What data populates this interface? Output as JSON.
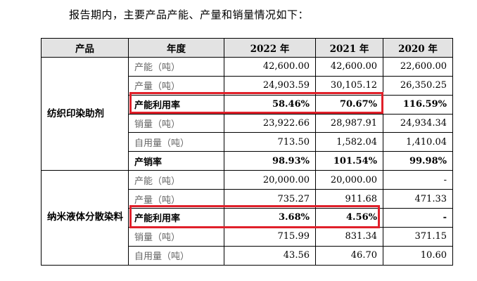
{
  "intro_text": "报告期内，主要产品产能、产量和销量情况如下：",
  "headers": [
    "产品",
    "年度",
    "2022 年",
    "2021 年",
    "2020 年"
  ],
  "groups": [
    {
      "product": "纺织印染助剂",
      "rows": [
        {
          "label": "产能（吨）",
          "values": [
            "42,600.00",
            "42,600.00",
            "22,600.00"
          ],
          "bold": false,
          "highlighted": false
        },
        {
          "label": "产量（吨）",
          "values": [
            "24,903.59",
            "30,105.12",
            "26,350.25"
          ],
          "bold": false,
          "highlighted": false
        },
        {
          "label": "产能利用率",
          "values": [
            "58.46%",
            "70.67%",
            "116.59%"
          ],
          "bold": true,
          "highlighted": true
        },
        {
          "label": "销量（吨）",
          "values": [
            "23,922.66",
            "28,987.91",
            "24,934.34"
          ],
          "bold": false,
          "highlighted": false
        },
        {
          "label": "自用量（吨）",
          "values": [
            "713.50",
            "1,582.04",
            "1,410.04"
          ],
          "bold": false,
          "highlighted": false
        },
        {
          "label": "产销率",
          "values": [
            "98.93%",
            "101.54%",
            "99.98%"
          ],
          "bold": true,
          "highlighted": false
        }
      ]
    },
    {
      "product": "纳米液体分散染料",
      "rows": [
        {
          "label": "产能（吨）",
          "values": [
            "20,000.00",
            "20,000.00",
            "-"
          ],
          "bold": false,
          "highlighted": false
        },
        {
          "label": "产量（吨）",
          "values": [
            "735.27",
            "911.68",
            "471.33"
          ],
          "bold": false,
          "highlighted": false
        },
        {
          "label": "产能利用率",
          "values": [
            "3.68%",
            "4.56%",
            "-"
          ],
          "bold": true,
          "highlighted": true
        },
        {
          "label": "销量（吨）",
          "values": [
            "715.99",
            "831.34",
            "371.15"
          ],
          "bold": false,
          "highlighted": false
        },
        {
          "label": "自用量（吨）",
          "values": [
            "43.56",
            "46.70",
            "10.60"
          ],
          "bold": false,
          "highlighted": false
        }
      ]
    }
  ],
  "highlight_color": "#e0202a",
  "header_background": "#e3e3e3"
}
